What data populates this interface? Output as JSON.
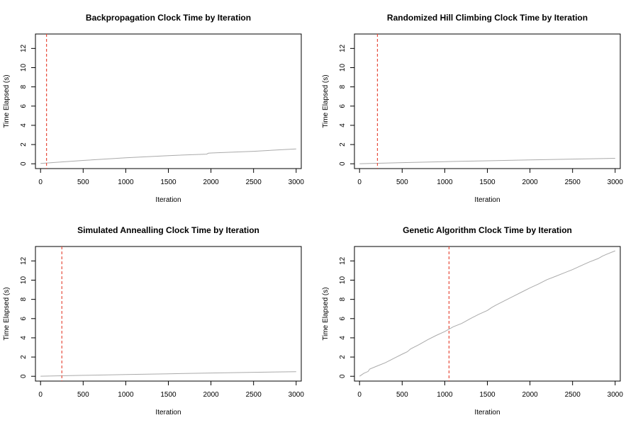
{
  "chart_data": [
    {
      "type": "line",
      "title": "Backpropagation Clock Time by Iteration",
      "xlabel": "Iteration",
      "ylabel": "Time Elapsed (s)",
      "xlim": [
        -60,
        3060
      ],
      "ylim": [
        -0.5,
        13.5
      ],
      "x_ticks": [
        0,
        500,
        1000,
        1500,
        2000,
        2500,
        3000
      ],
      "y_ticks": [
        0,
        2,
        4,
        6,
        8,
        10,
        12
      ],
      "series": [
        {
          "x": [
            0,
            500,
            1000,
            1500,
            1950,
            1970,
            2000,
            2500,
            3000
          ],
          "y": [
            0.03,
            0.35,
            0.62,
            0.85,
            1.0,
            1.1,
            1.12,
            1.3,
            1.55
          ]
        }
      ],
      "vline": 70,
      "grid": false
    },
    {
      "type": "line",
      "title": "Randomized Hill Climbing Clock Time by Iteration",
      "xlabel": "Iteration",
      "ylabel": "Time Elapsed (s)",
      "xlim": [
        -60,
        3060
      ],
      "ylim": [
        -0.5,
        13.5
      ],
      "x_ticks": [
        0,
        500,
        1000,
        1500,
        2000,
        2500,
        3000
      ],
      "y_ticks": [
        0,
        2,
        4,
        6,
        8,
        10,
        12
      ],
      "series": [
        {
          "x": [
            0,
            500,
            1000,
            1500,
            2000,
            2500,
            3000
          ],
          "y": [
            0.01,
            0.12,
            0.22,
            0.31,
            0.4,
            0.49,
            0.57
          ]
        }
      ],
      "vline": 210,
      "grid": false
    },
    {
      "type": "line",
      "title": "Simulated Annealling Clock Time by Iteration",
      "xlabel": "Iteration",
      "ylabel": "Time Elapsed (s)",
      "xlim": [
        -60,
        3060
      ],
      "ylim": [
        -0.5,
        13.5
      ],
      "x_ticks": [
        0,
        500,
        1000,
        1500,
        2000,
        2500,
        3000
      ],
      "y_ticks": [
        0,
        2,
        4,
        6,
        8,
        10,
        12
      ],
      "series": [
        {
          "x": [
            0,
            500,
            1000,
            1500,
            2000,
            2500,
            3000
          ],
          "y": [
            0.01,
            0.1,
            0.18,
            0.26,
            0.34,
            0.41,
            0.48
          ]
        }
      ],
      "vline": 250,
      "grid": false
    },
    {
      "type": "line",
      "title": "Genetic Algorithm Clock Time by Iteration",
      "xlabel": "Iteration",
      "ylabel": "Time Elapsed (s)",
      "xlim": [
        -60,
        3060
      ],
      "ylim": [
        -0.5,
        13.5
      ],
      "x_ticks": [
        0,
        500,
        1000,
        1500,
        2000,
        2500,
        3000
      ],
      "y_ticks": [
        0,
        2,
        4,
        6,
        8,
        10,
        12
      ],
      "series": [
        {
          "x": [
            0,
            50,
            100,
            120,
            200,
            300,
            400,
            500,
            560,
            600,
            700,
            800,
            900,
            1000,
            1050,
            1100,
            1200,
            1250,
            1300,
            1400,
            1500,
            1550,
            1600,
            1700,
            1800,
            1900,
            2000,
            2100,
            2200,
            2300,
            2400,
            2500,
            2600,
            2700,
            2800,
            2850,
            2900,
            3000
          ],
          "y": [
            0.0,
            0.3,
            0.5,
            0.75,
            1.05,
            1.4,
            1.85,
            2.3,
            2.55,
            2.85,
            3.3,
            3.8,
            4.25,
            4.65,
            4.9,
            5.15,
            5.5,
            5.75,
            6.0,
            6.45,
            6.85,
            7.15,
            7.4,
            7.85,
            8.3,
            8.75,
            9.2,
            9.6,
            10.05,
            10.4,
            10.75,
            11.1,
            11.5,
            11.9,
            12.25,
            12.5,
            12.7,
            13.05
          ]
        }
      ],
      "vline": 1050,
      "grid": false
    }
  ],
  "colors": {
    "series": "#aaaaaa",
    "vline": "#e74c3c",
    "axis": "#000000"
  }
}
